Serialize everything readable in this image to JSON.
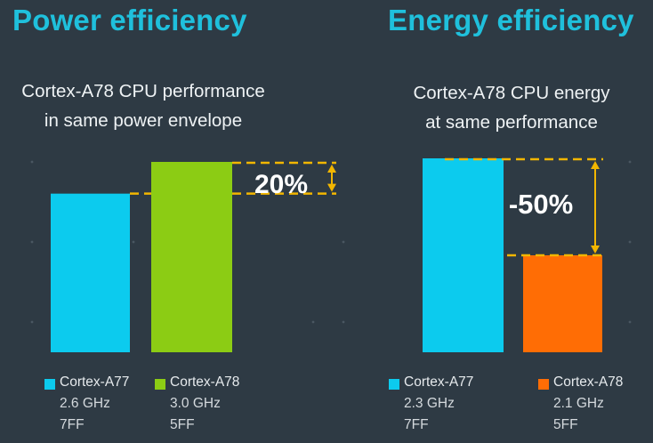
{
  "colors": {
    "background": "#2e3a44",
    "heading": "#1fc0dc",
    "cyan_bar": "#0ccbee",
    "green_bar": "#8ccc14",
    "orange_bar": "#ff6d05",
    "guide": "#f2b600"
  },
  "chart_data": [
    {
      "type": "bar",
      "title": "Power efficiency",
      "subtitle": [
        "Cortex-A78 CPU performance",
        "in same power envelope"
      ],
      "annotation": "20%",
      "series": [
        {
          "name": "Cortex-A77",
          "details": [
            "2.6 GHz",
            "7FF"
          ],
          "value": 100,
          "color": "#0ccbee"
        },
        {
          "name": "Cortex-A78",
          "details": [
            "3.0 GHz",
            "5FF"
          ],
          "value": 120,
          "color": "#8ccc14"
        }
      ],
      "ylim": [
        0,
        120
      ]
    },
    {
      "type": "bar",
      "title": "Energy efficiency",
      "subtitle": [
        "Cortex-A78 CPU energy",
        "at same performance"
      ],
      "annotation": "-50%",
      "series": [
        {
          "name": "Cortex-A77",
          "details": [
            "2.3 GHz",
            "7FF"
          ],
          "value": 100,
          "color": "#0ccbee"
        },
        {
          "name": "Cortex-A78",
          "details": [
            "2.1 GHz",
            "5FF"
          ],
          "value": 50,
          "color": "#ff6d05"
        }
      ],
      "ylim": [
        0,
        100
      ]
    }
  ]
}
